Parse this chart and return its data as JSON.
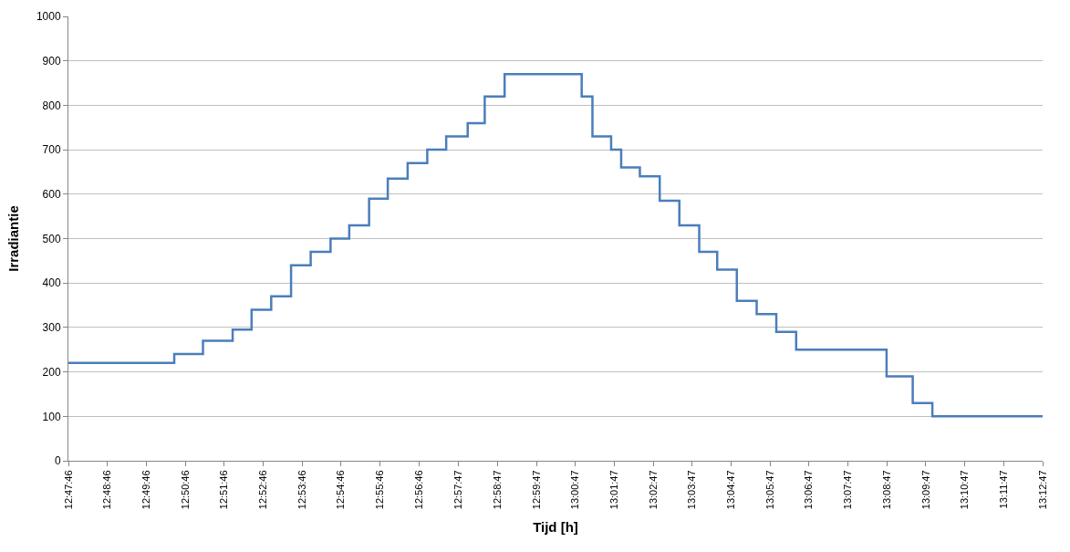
{
  "chart_data": {
    "type": "step",
    "xlabel": "Tijd [h]",
    "ylabel": "Irradiantie",
    "x": [
      12.7961,
      12.8414,
      12.8537,
      12.8664,
      12.8745,
      12.8829,
      12.8914,
      12.8998,
      12.9083,
      12.9163,
      12.9248,
      12.9328,
      12.9413,
      12.9497,
      12.9578,
      12.967,
      12.9743,
      12.9828,
      13.0158,
      13.0204,
      13.0284,
      13.0327,
      13.0407,
      13.0492,
      13.0576,
      13.0661,
      13.0738,
      13.0822,
      13.0907,
      13.0991,
      13.1076,
      13.1463,
      13.1575,
      13.1659,
      13.2131
    ],
    "series": [
      {
        "color": "#4a7ebb",
        "values": [
          220,
          240,
          270,
          295,
          340,
          370,
          440,
          470,
          500,
          530,
          590,
          635,
          670,
          700,
          730,
          760,
          820,
          870,
          820,
          730,
          700,
          660,
          640,
          585,
          530,
          470,
          430,
          360,
          330,
          290,
          250,
          190,
          130,
          100,
          100
        ]
      }
    ],
    "ylim": [
      0,
      1000
    ],
    "yticks": [
      0,
      100,
      200,
      300,
      400,
      500,
      600,
      700,
      800,
      900,
      1000
    ],
    "xlim": [
      12.7961,
      13.2131
    ],
    "xticks": [
      {
        "value": 12.7961,
        "label": "12:47:46"
      },
      {
        "value": 12.8128,
        "label": "12:48:46"
      },
      {
        "value": 12.8294,
        "label": "12:49:46"
      },
      {
        "value": 12.8461,
        "label": "12:50:46"
      },
      {
        "value": 12.8628,
        "label": "12:51:46"
      },
      {
        "value": 12.8794,
        "label": "12:52:46"
      },
      {
        "value": 12.8961,
        "label": "12:53:46"
      },
      {
        "value": 12.9128,
        "label": "12:54:46"
      },
      {
        "value": 12.9294,
        "label": "12:55:46"
      },
      {
        "value": 12.9461,
        "label": "12:56:46"
      },
      {
        "value": 12.9631,
        "label": "12:57:47"
      },
      {
        "value": 12.9797,
        "label": "12:58:47"
      },
      {
        "value": 12.9964,
        "label": "12:59:47"
      },
      {
        "value": 13.0131,
        "label": "13:00:47"
      },
      {
        "value": 13.0297,
        "label": "13:01:47"
      },
      {
        "value": 13.0464,
        "label": "13:02:47"
      },
      {
        "value": 13.0631,
        "label": "13:03:47"
      },
      {
        "value": 13.0797,
        "label": "13:04:47"
      },
      {
        "value": 13.0964,
        "label": "13:05:47"
      },
      {
        "value": 13.1131,
        "label": "13:06:47"
      },
      {
        "value": 13.1297,
        "label": "13:07:47"
      },
      {
        "value": 13.1464,
        "label": "13:08:47"
      },
      {
        "value": 13.1631,
        "label": "13:09:47"
      },
      {
        "value": 13.1797,
        "label": "13:10:47"
      },
      {
        "value": 13.1964,
        "label": "13:11:47"
      },
      {
        "value": 13.2131,
        "label": "13:12:47"
      }
    ],
    "grid": "y"
  }
}
